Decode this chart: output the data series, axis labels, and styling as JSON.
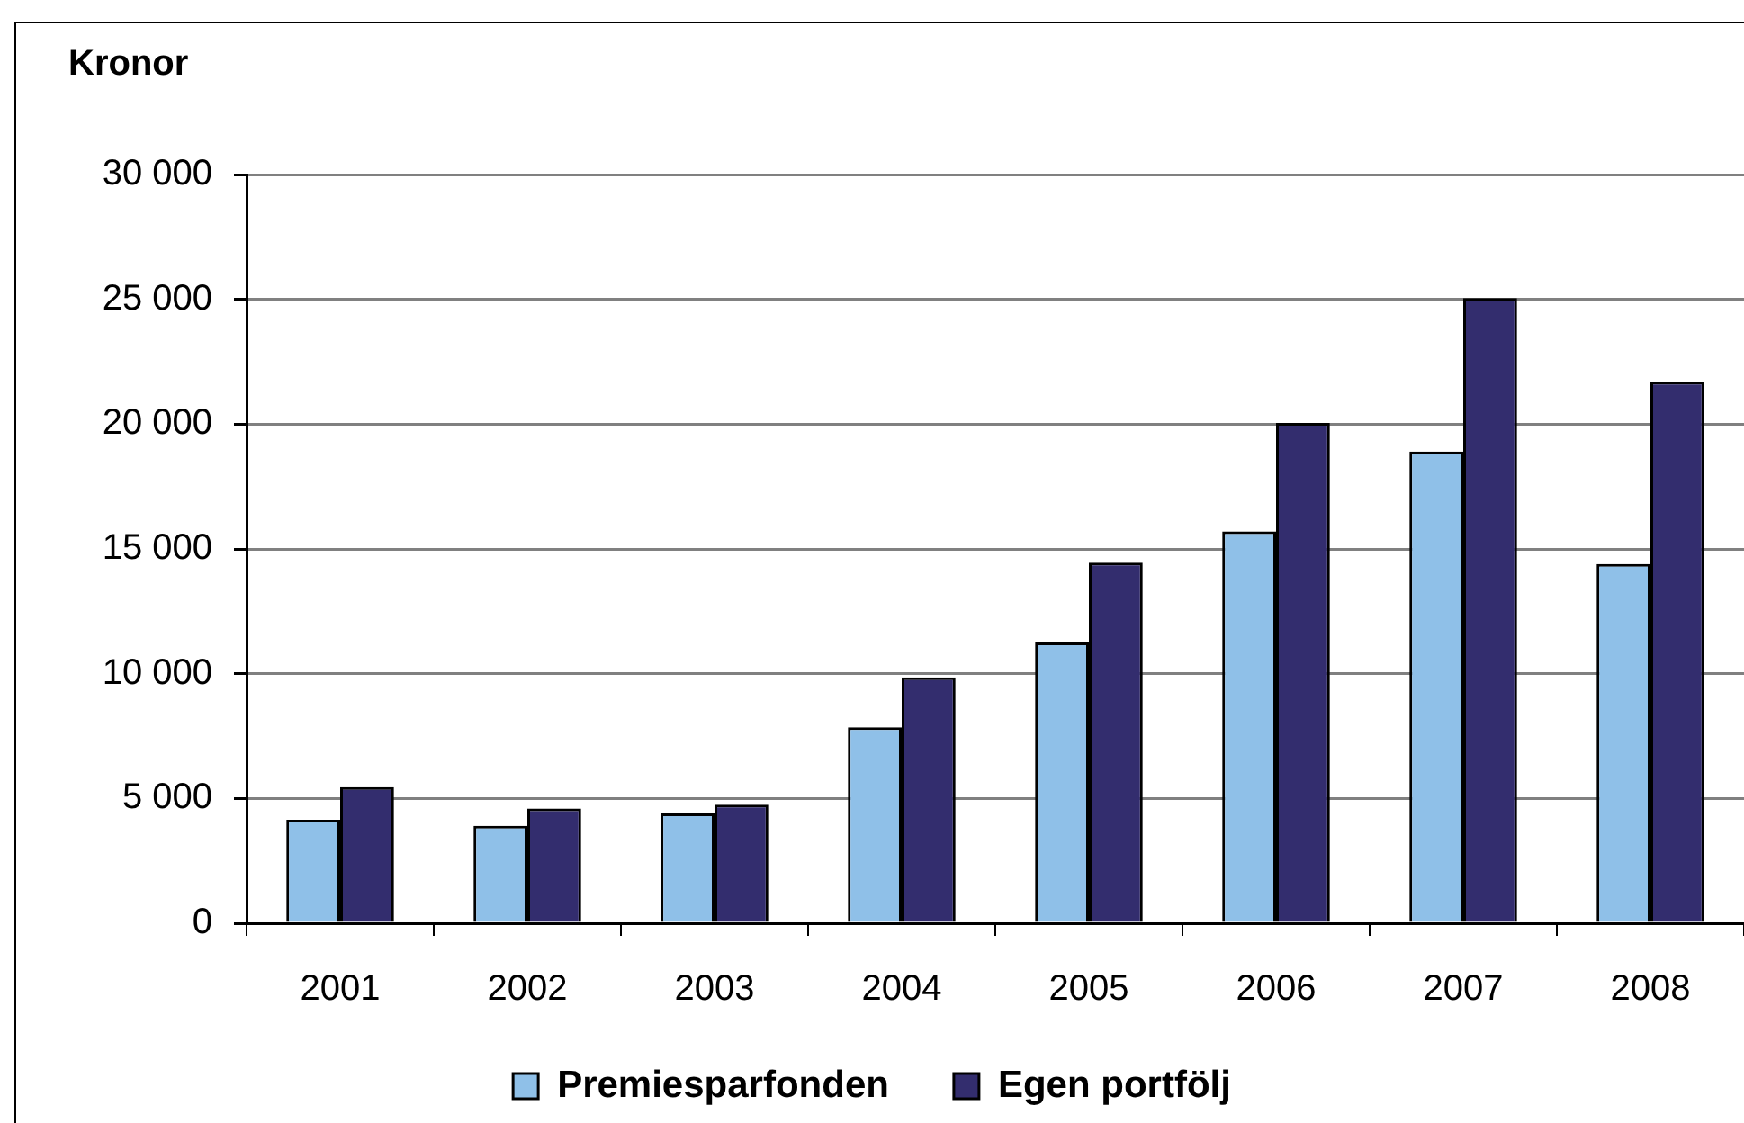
{
  "chart_data": {
    "type": "bar",
    "ylabel": "Kronor",
    "categories": [
      "2001",
      "2002",
      "2003",
      "2004",
      "2005",
      "2006",
      "2007",
      "2008"
    ],
    "series": [
      {
        "name": "Premiesparfonden",
        "color": "#8fc0e8",
        "values": [
          4150,
          3900,
          4400,
          7850,
          11250,
          15700,
          18900,
          14400
        ]
      },
      {
        "name": "Egen portfölj",
        "color": "#332d6e",
        "values": [
          5450,
          4600,
          4750,
          9850,
          14450,
          20050,
          25050,
          21700
        ]
      }
    ],
    "ylim": [
      0,
      30000
    ],
    "yticks": [
      0,
      {
        "value": 5000,
        "label": "5 000"
      },
      {
        "value": 10000,
        "label": "10 000"
      },
      {
        "value": 15000,
        "label": "15 000"
      },
      {
        "value": 20000,
        "label": "20 000"
      },
      {
        "value": 25000,
        "label": "25 000"
      },
      {
        "value": 30000,
        "label": "30 000"
      }
    ],
    "grid": "y",
    "legend": "bottom"
  }
}
